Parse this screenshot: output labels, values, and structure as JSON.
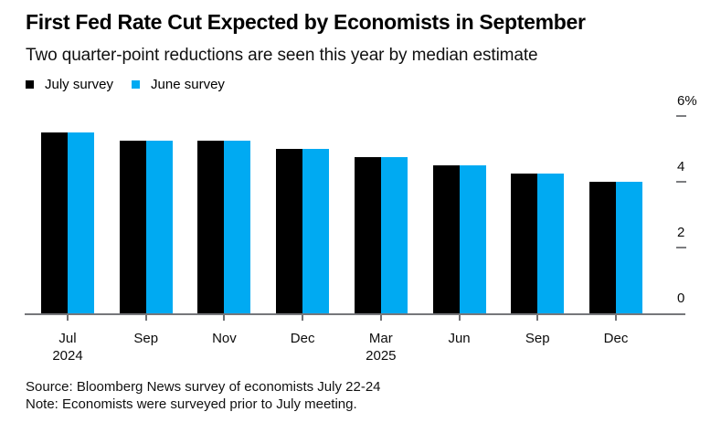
{
  "header": {
    "title": "First Fed Rate Cut Expected by Economists in September",
    "subtitle": "Two quarter-point reductions are seen this year by median estimate"
  },
  "legend": {
    "items": [
      {
        "id": "july-survey",
        "label": "July survey",
        "color": "#000000"
      },
      {
        "id": "june-survey",
        "label": "June survey",
        "color": "#00aaf2"
      }
    ]
  },
  "chart_data": {
    "type": "bar",
    "title": "First Fed Rate Cut Expected by Economists in September",
    "subtitle": "Two quarter-point reductions are seen this year by median estimate",
    "unit": "percent",
    "categories": [
      "Jul 2024",
      "Sep 2024",
      "Nov 2024",
      "Dec 2024",
      "Mar 2025",
      "Jun 2025",
      "Sep 2025",
      "Dec 2025"
    ],
    "category_tick_labels": [
      "Jul\n2024",
      "Sep",
      "Nov",
      "Dec",
      "Mar\n2025",
      "Jun",
      "Sep",
      "Dec"
    ],
    "series": [
      {
        "name": "July survey",
        "color": "#000000",
        "values": [
          5.5,
          5.25,
          5.25,
          5.0,
          4.75,
          4.5,
          4.25,
          4.0
        ]
      },
      {
        "name": "June survey",
        "color": "#00aaf2",
        "values": [
          5.5,
          5.25,
          5.25,
          5.0,
          4.75,
          4.5,
          4.25,
          4.0
        ]
      }
    ],
    "ylim": [
      0,
      6
    ],
    "yticks": [
      {
        "value": 6,
        "label": "6%"
      },
      {
        "value": 4,
        "label": "4"
      },
      {
        "value": 2,
        "label": "2"
      },
      {
        "value": 0,
        "label": "0"
      }
    ],
    "y_axis_side": "right",
    "grid": false,
    "legend_position": "top-left",
    "axis_line_color": "#76777b"
  },
  "footer": {
    "source": "Source: Bloomberg News survey of economists July 22-24",
    "note": "Note: Economists were surveyed prior to July meeting."
  },
  "colors": {
    "background": "#ffffff",
    "bar_black": "#000000",
    "bar_blue": "#00aaf2",
    "axis_line": "#76777b",
    "tick": "#7c7d80"
  }
}
